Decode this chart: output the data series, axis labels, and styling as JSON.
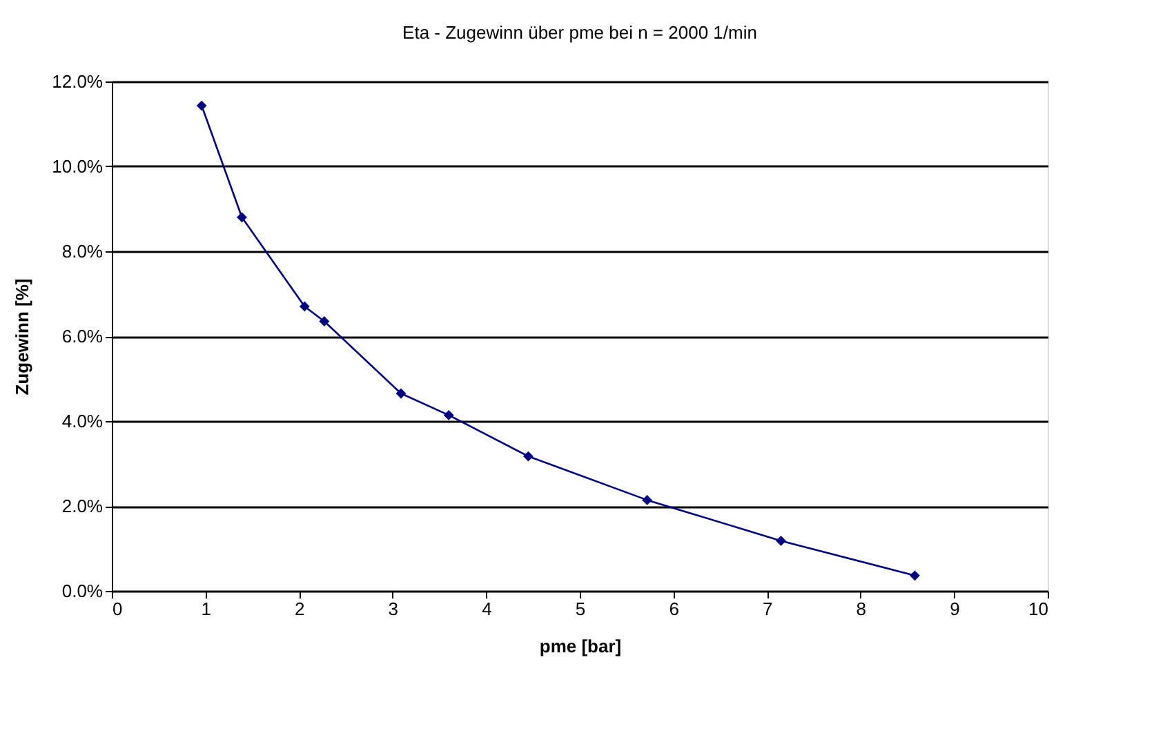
{
  "chart_data": {
    "type": "line",
    "title": "Eta - Zugewinn über pme bei n  = 2000 1/min",
    "xlabel": "pme [bar]",
    "ylabel": "Zugewinn [%]",
    "x": [
      0.96,
      1.39,
      2.06,
      2.27,
      3.09,
      3.6,
      4.45,
      5.72,
      7.15,
      8.58
    ],
    "series": [
      {
        "color": "#000080",
        "values": [
          11.43,
          8.8,
          6.7,
          6.35,
          4.65,
          4.14,
          3.17,
          2.14,
          1.18,
          0.36
        ]
      }
    ],
    "xlim": [
      0,
      10
    ],
    "xticks": [
      0,
      1,
      2,
      3,
      4,
      5,
      6,
      7,
      8,
      9,
      10
    ],
    "ylim": [
      0,
      12
    ],
    "yticks": [
      {
        "value": 0,
        "label": "0.0%"
      },
      {
        "value": 2,
        "label": "2.0%"
      },
      {
        "value": 4,
        "label": "4.0%"
      },
      {
        "value": 6,
        "label": "6.0%"
      },
      {
        "value": 8,
        "label": "8.0%"
      },
      {
        "value": 10,
        "label": "10.0%"
      },
      {
        "value": 12,
        "label": "12.0%"
      }
    ],
    "grid": "y",
    "marker": "diamond",
    "line_style": "solid"
  }
}
